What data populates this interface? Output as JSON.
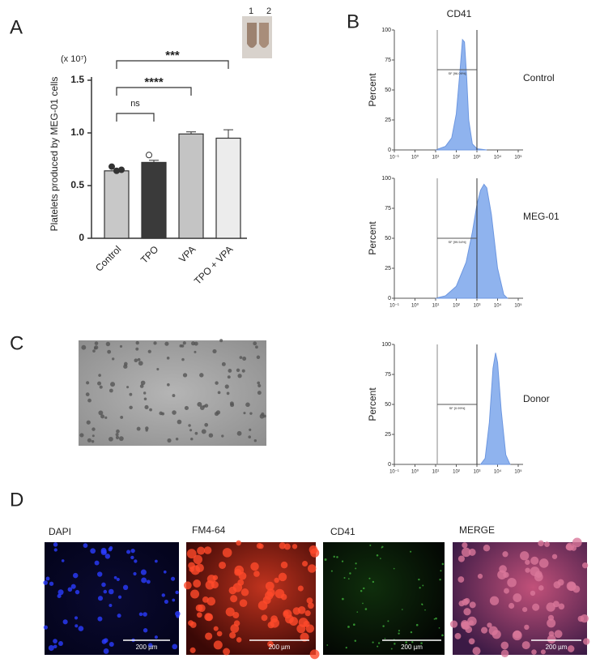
{
  "panel_labels": [
    "A",
    "B",
    "C",
    "D"
  ],
  "tube_labels": [
    "1",
    "2"
  ],
  "chart_data": [
    {
      "type": "bar",
      "y_multiplier": "(x 10⁷)",
      "ylabel": "Platelets produced by MEG-01 cells",
      "categories": [
        "Control",
        "TPO",
        "VPA",
        "TPO + VPA"
      ],
      "values": [
        0.64,
        0.72,
        0.99,
        0.95
      ],
      "errors": [
        0.02,
        0.02,
        0.02,
        0.08
      ],
      "points": [
        [
          0.68,
          0.64,
          0.65
        ],
        [
          0.79
        ],
        [],
        []
      ],
      "colors": [
        "#c8c8c8",
        "#3a3a3a",
        "#c4c4c4",
        "#ececec"
      ],
      "ylim": [
        0,
        1.5
      ],
      "yticks": [
        0,
        0.5,
        {
          "value": 1,
          "label": "1.0"
        },
        1.5
      ],
      "annotations": [
        "ns",
        "****",
        "***"
      ]
    },
    {
      "type": "area",
      "title": "CD41",
      "label": "Control",
      "ylabel": "Percent",
      "gate_label": "SF [96.09%]",
      "gates": [
        12,
        1000
      ],
      "color": "#8fb3ee",
      "x": [
        10,
        30,
        60,
        100,
        150,
        200,
        250,
        320,
        400,
        600,
        1000,
        3000
      ],
      "values": [
        0,
        3,
        10,
        30,
        65,
        92,
        90,
        60,
        25,
        5,
        1,
        0
      ],
      "xlim": [
        0.1,
        100000
      ],
      "log_x": true,
      "xticks": [
        {
          "value": 0.1,
          "label": "10⁻¹"
        },
        {
          "value": 1,
          "label": "10⁰"
        },
        {
          "value": 10,
          "label": "10¹"
        },
        {
          "value": 100,
          "label": "10²"
        },
        {
          "value": 1000,
          "label": "10³"
        },
        {
          "value": 10000,
          "label": "10⁴"
        },
        {
          "value": 100000,
          "label": "10⁵"
        }
      ],
      "ylim": [
        0,
        100
      ],
      "yticks": [
        0,
        25,
        50,
        75,
        100
      ]
    },
    {
      "type": "area",
      "label": "MEG-01",
      "ylabel": "Percent",
      "gate_label": "SF [99.54%]",
      "gates": [
        12,
        1000
      ],
      "color": "#8fb3ee",
      "x": [
        10,
        30,
        100,
        300,
        600,
        1000,
        1500,
        2200,
        3000,
        5000,
        10000,
        20000,
        30000
      ],
      "values": [
        0,
        2,
        10,
        30,
        55,
        78,
        90,
        95,
        92,
        70,
        25,
        3,
        0
      ],
      "xlim": [
        0.1,
        100000
      ],
      "log_x": true,
      "xticks": [
        {
          "value": 0.1,
          "label": "10⁻¹"
        },
        {
          "value": 1,
          "label": "10⁰"
        },
        {
          "value": 10,
          "label": "10¹"
        },
        {
          "value": 100,
          "label": "10²"
        },
        {
          "value": 1000,
          "label": "10³"
        },
        {
          "value": 10000,
          "label": "10⁴"
        },
        {
          "value": 100000,
          "label": "10⁵"
        }
      ],
      "ylim": [
        0,
        100
      ],
      "yticks": [
        0,
        25,
        50,
        75,
        100
      ]
    },
    {
      "type": "area",
      "label": "Donor",
      "ylabel": "Percent",
      "gate_label": "SF [0.99%]",
      "gates": [
        12,
        1000
      ],
      "color": "#8fb3ee",
      "x": [
        1500,
        2500,
        4000,
        6000,
        8000,
        10000,
        15000,
        25000,
        40000
      ],
      "values": [
        0,
        5,
        35,
        80,
        93,
        85,
        45,
        8,
        0
      ],
      "xlim": [
        0.1,
        100000
      ],
      "log_x": true,
      "xticks": [
        {
          "value": 0.1,
          "label": "10⁻¹"
        },
        {
          "value": 1,
          "label": "10⁰"
        },
        {
          "value": 10,
          "label": "10¹"
        },
        {
          "value": 100,
          "label": "10²"
        },
        {
          "value": 1000,
          "label": "10³"
        },
        {
          "value": 10000,
          "label": "10⁴"
        },
        {
          "value": 100000,
          "label": "10⁵"
        }
      ],
      "ylim": [
        0,
        100
      ],
      "yticks": [
        0,
        25,
        50,
        75,
        100
      ]
    }
  ],
  "micrographs": [
    {
      "title": "DAPI",
      "scale_bar": "200 µm"
    },
    {
      "title": "FM4-64",
      "scale_bar": "200 µm"
    },
    {
      "title": "CD41",
      "scale_bar": "200 µm"
    },
    {
      "title": "MERGE",
      "scale_bar": "200 µm"
    }
  ]
}
